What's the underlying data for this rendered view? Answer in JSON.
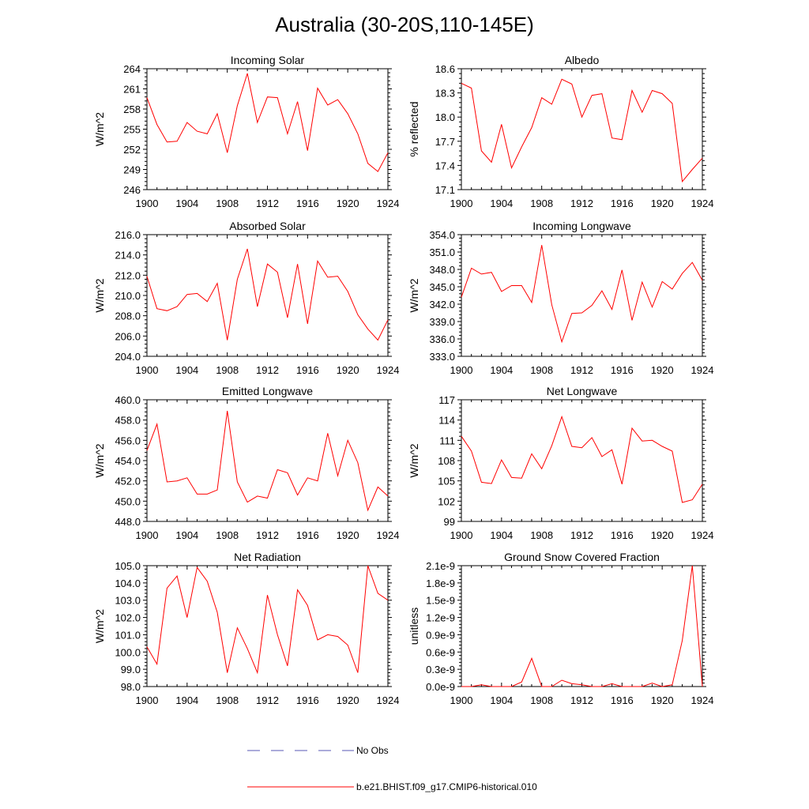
{
  "figure": {
    "title": "Australia (30-20S,110-145E)",
    "line_color": "#ff0000",
    "obs_color": "#5a5ab4"
  },
  "legend": {
    "items": [
      {
        "label": "No Obs",
        "style": "dashed",
        "color": "#5a5ab4"
      },
      {
        "label": "b.e21.BHIST.f09_g17.CMIP6-historical.010",
        "style": "solid",
        "color": "#ff0000"
      }
    ]
  },
  "chart_data": [
    {
      "type": "line",
      "title": "Incoming Solar",
      "ylabel": "W/m^2",
      "xlim": [
        1900,
        1924
      ],
      "ylim": [
        246,
        264
      ],
      "xticks": [
        1900,
        1904,
        1908,
        1912,
        1916,
        1920,
        1924
      ],
      "yticks": [
        246,
        249,
        252,
        255,
        258,
        261,
        264
      ],
      "ytick_labels": [
        "246",
        "249",
        "252",
        "255",
        "258",
        "261",
        "264"
      ],
      "x": [
        1900,
        1901,
        1902,
        1903,
        1904,
        1905,
        1906,
        1907,
        1908,
        1909,
        1910,
        1911,
        1912,
        1913,
        1914,
        1915,
        1916,
        1917,
        1918,
        1919,
        1920,
        1921,
        1922,
        1923,
        1924
      ],
      "series": [
        {
          "values": [
            259.7,
            255.7,
            253.1,
            253.2,
            256.0,
            254.7,
            254.3,
            257.3,
            251.5,
            258.5,
            263.3,
            256.0,
            259.8,
            259.7,
            254.3,
            259.1,
            251.8,
            261.1,
            258.6,
            259.4,
            257.3,
            254.3,
            249.9,
            248.7,
            251.5
          ]
        }
      ]
    },
    {
      "type": "line",
      "title": "Albedo",
      "ylabel": "% reflected",
      "xlim": [
        1900,
        1924
      ],
      "ylim": [
        17.1,
        18.6
      ],
      "xticks": [
        1900,
        1904,
        1908,
        1912,
        1916,
        1920,
        1924
      ],
      "yticks": [
        17.1,
        17.4,
        17.7,
        18.0,
        18.3,
        18.6
      ],
      "ytick_labels": [
        "17.1",
        "17.4",
        "17.7",
        "18.0",
        "18.3",
        "18.6"
      ],
      "x": [
        1900,
        1901,
        1902,
        1903,
        1904,
        1905,
        1906,
        1907,
        1908,
        1909,
        1910,
        1911,
        1912,
        1913,
        1914,
        1915,
        1916,
        1917,
        1918,
        1919,
        1920,
        1921,
        1922,
        1923,
        1924
      ],
      "series": [
        {
          "values": [
            18.42,
            18.36,
            17.58,
            17.44,
            17.91,
            17.37,
            17.63,
            17.87,
            18.24,
            18.16,
            18.47,
            18.41,
            18.0,
            18.27,
            18.29,
            17.74,
            17.72,
            18.33,
            18.06,
            18.33,
            18.29,
            18.17,
            17.2,
            17.35,
            17.49
          ]
        }
      ]
    },
    {
      "type": "line",
      "title": "Absorbed Solar",
      "ylabel": "W/m^2",
      "xlim": [
        1900,
        1924
      ],
      "ylim": [
        204,
        216
      ],
      "xticks": [
        1900,
        1904,
        1908,
        1912,
        1916,
        1920,
        1924
      ],
      "yticks": [
        204,
        206,
        208,
        210,
        212,
        214,
        216
      ],
      "ytick_labels": [
        "204.0",
        "206.0",
        "208.0",
        "210.0",
        "212.0",
        "214.0",
        "216.0"
      ],
      "x": [
        1900,
        1901,
        1902,
        1903,
        1904,
        1905,
        1906,
        1907,
        1908,
        1909,
        1910,
        1911,
        1912,
        1913,
        1914,
        1915,
        1916,
        1917,
        1918,
        1919,
        1920,
        1921,
        1922,
        1923,
        1924
      ],
      "series": [
        {
          "values": [
            211.9,
            208.7,
            208.5,
            208.9,
            210.1,
            210.2,
            209.4,
            211.2,
            205.6,
            211.6,
            214.6,
            208.9,
            213.1,
            212.3,
            207.8,
            213.1,
            207.2,
            213.4,
            211.8,
            211.9,
            210.4,
            208.1,
            206.7,
            205.6,
            207.6
          ]
        }
      ]
    },
    {
      "type": "line",
      "title": "Incoming Longwave",
      "ylabel": "W/m^2",
      "xlim": [
        1900,
        1924
      ],
      "ylim": [
        333,
        354
      ],
      "xticks": [
        1900,
        1904,
        1908,
        1912,
        1916,
        1920,
        1924
      ],
      "yticks": [
        333,
        336,
        339,
        342,
        345,
        348,
        351,
        354
      ],
      "ytick_labels": [
        "333.0",
        "336.0",
        "339.0",
        "342.0",
        "345.0",
        "348.0",
        "351.0",
        "354.0"
      ],
      "x": [
        1900,
        1901,
        1902,
        1903,
        1904,
        1905,
        1906,
        1907,
        1908,
        1909,
        1910,
        1911,
        1912,
        1913,
        1914,
        1915,
        1916,
        1917,
        1918,
        1919,
        1920,
        1921,
        1922,
        1923,
        1924
      ],
      "series": [
        {
          "values": [
            343.2,
            348.2,
            347.2,
            347.5,
            344.2,
            345.2,
            345.2,
            342.3,
            352.2,
            341.9,
            335.5,
            340.4,
            340.5,
            341.8,
            344.3,
            341.1,
            347.9,
            339.2,
            345.8,
            341.5,
            345.9,
            344.6,
            347.3,
            349.2,
            346.1
          ]
        }
      ]
    },
    {
      "type": "line",
      "title": "Emitted Longwave",
      "ylabel": "W/m^2",
      "xlim": [
        1900,
        1924
      ],
      "ylim": [
        448,
        460
      ],
      "xticks": [
        1900,
        1904,
        1908,
        1912,
        1916,
        1920,
        1924
      ],
      "yticks": [
        448,
        450,
        452,
        454,
        456,
        458,
        460
      ],
      "ytick_labels": [
        "448.0",
        "450.0",
        "452.0",
        "454.0",
        "456.0",
        "458.0",
        "460.0"
      ],
      "x": [
        1900,
        1901,
        1902,
        1903,
        1904,
        1905,
        1906,
        1907,
        1908,
        1909,
        1910,
        1911,
        1912,
        1913,
        1914,
        1915,
        1916,
        1917,
        1918,
        1919,
        1920,
        1921,
        1922,
        1923,
        1924
      ],
      "series": [
        {
          "values": [
            455.0,
            457.6,
            451.9,
            452.0,
            452.3,
            450.7,
            450.7,
            451.1,
            458.9,
            451.9,
            449.9,
            450.5,
            450.3,
            453.1,
            452.8,
            450.6,
            452.3,
            452.0,
            456.7,
            452.5,
            456.0,
            453.8,
            449.1,
            451.4,
            450.5
          ]
        }
      ]
    },
    {
      "type": "line",
      "title": "Net Longwave",
      "ylabel": "W/m^2",
      "xlim": [
        1900,
        1924
      ],
      "ylim": [
        99,
        117
      ],
      "xticks": [
        1900,
        1904,
        1908,
        1912,
        1916,
        1920,
        1924
      ],
      "yticks": [
        99,
        102,
        105,
        108,
        111,
        114,
        117
      ],
      "ytick_labels": [
        "99",
        "102",
        "105",
        "108",
        "111",
        "114",
        "117"
      ],
      "x": [
        1900,
        1901,
        1902,
        1903,
        1904,
        1905,
        1906,
        1907,
        1908,
        1909,
        1910,
        1911,
        1912,
        1913,
        1914,
        1915,
        1916,
        1917,
        1918,
        1919,
        1920,
        1921,
        1922,
        1923,
        1924
      ],
      "series": [
        {
          "values": [
            111.6,
            109.4,
            104.8,
            104.6,
            108.1,
            105.5,
            105.4,
            109.0,
            106.8,
            110.2,
            114.5,
            110.1,
            109.9,
            111.4,
            108.6,
            109.6,
            104.5,
            112.8,
            110.9,
            111.0,
            110.1,
            109.4,
            101.8,
            102.2,
            104.5
          ]
        }
      ]
    },
    {
      "type": "line",
      "title": "Net Radiation",
      "ylabel": "W/m^2",
      "xlim": [
        1900,
        1924
      ],
      "ylim": [
        98,
        105
      ],
      "xticks": [
        1900,
        1904,
        1908,
        1912,
        1916,
        1920,
        1924
      ],
      "yticks": [
        98,
        99,
        100,
        101,
        102,
        103,
        104,
        105
      ],
      "ytick_labels": [
        "98.0",
        "99.0",
        "100.0",
        "101.0",
        "102.0",
        "103.0",
        "104.0",
        "105.0"
      ],
      "x": [
        1900,
        1901,
        1902,
        1903,
        1904,
        1905,
        1906,
        1907,
        1908,
        1909,
        1910,
        1911,
        1912,
        1913,
        1914,
        1915,
        1916,
        1917,
        1918,
        1919,
        1920,
        1921,
        1922,
        1923,
        1924
      ],
      "series": [
        {
          "values": [
            100.3,
            99.3,
            103.7,
            104.4,
            102.0,
            104.9,
            104.1,
            102.3,
            98.8,
            101.4,
            100.2,
            98.8,
            103.3,
            101.0,
            99.2,
            103.6,
            102.7,
            100.7,
            101.0,
            100.9,
            100.4,
            98.8,
            105.0,
            103.4,
            103.0
          ]
        }
      ]
    },
    {
      "type": "line",
      "title": "Ground Snow Covered Fraction",
      "ylabel": "unitless",
      "xlim": [
        1900,
        1924
      ],
      "ylim": [
        0,
        2.1e-09
      ],
      "xticks": [
        1900,
        1904,
        1908,
        1912,
        1916,
        1920,
        1924
      ],
      "yticks": [
        0,
        3e-10,
        6e-10,
        9e-10,
        1.2e-09,
        1.5e-09,
        1.8e-09,
        2.1e-09
      ],
      "ytick_labels": [
        "0.0e-9",
        "0.3e-9",
        "0.6e-9",
        "0.9e-9",
        "1.2e-9",
        "1.5e-9",
        "1.8e-9",
        "2.1e-9"
      ],
      "x": [
        1900,
        1901,
        1902,
        1903,
        1904,
        1905,
        1906,
        1907,
        1908,
        1909,
        1910,
        1911,
        1912,
        1913,
        1914,
        1915,
        1916,
        1917,
        1918,
        1919,
        1920,
        1921,
        1922,
        1923,
        1924
      ],
      "series": [
        {
          "values": [
            0,
            0,
            3e-11,
            0,
            0,
            0,
            8e-11,
            4.9e-10,
            0,
            0,
            1.1e-10,
            5e-11,
            3e-11,
            0,
            0,
            5e-11,
            0,
            0,
            0,
            6e-11,
            0,
            3e-11,
            8e-10,
            2.1e-09,
            0
          ]
        }
      ]
    }
  ]
}
